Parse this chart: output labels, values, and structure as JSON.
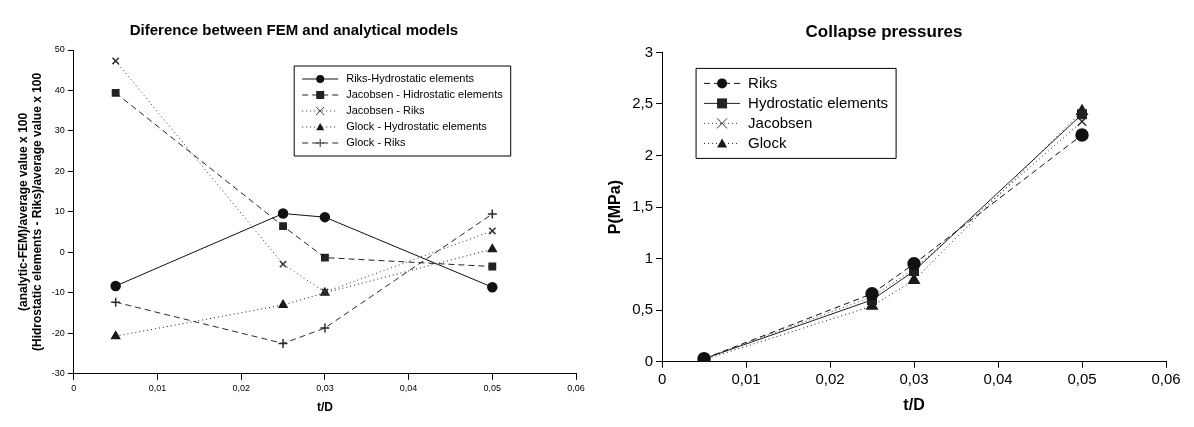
{
  "chart_data": [
    {
      "type": "line",
      "title": "Diference between FEM and analytical models",
      "xlabel": "t/D",
      "ylabel": "(analytic-FEM)/average value x 100\n(Hidrostatic elements - Riks)/average value x 100",
      "x": [
        0.005,
        0.025,
        0.03,
        0.05
      ],
      "xlim": [
        0,
        0.06
      ],
      "xticks": [
        0,
        {
          "value": 0.01,
          "label": "0,01"
        },
        {
          "value": 0.02,
          "label": "0,02"
        },
        {
          "value": 0.03,
          "label": "0,03"
        },
        {
          "value": 0.04,
          "label": "0,04"
        },
        {
          "value": 0.05,
          "label": "0,05"
        },
        {
          "value": 0.06,
          "label": "0,06"
        }
      ],
      "ylim": [
        -30,
        50
      ],
      "yticks": [
        -30,
        -20,
        -10,
        0,
        10,
        20,
        30,
        40,
        50
      ],
      "grid": false,
      "legend": "top right",
      "series": [
        {
          "name": "Riks-Hydrostatic elements",
          "color": "#111111",
          "marker": "circle",
          "line_style": "solid",
          "values": [
            -8.3,
            9.6,
            8.7,
            -8.6
          ]
        },
        {
          "name": "Jacobsen - Hidrostatic elements",
          "color": "#222222",
          "marker": "square",
          "line_style": "dashed",
          "values": [
            39.4,
            6.5,
            -1.3,
            -3.5
          ]
        },
        {
          "name": "Jacobsen - Riks",
          "color": "#333333",
          "marker": "cross",
          "line_style": "dotted",
          "values": [
            47.3,
            -2.9,
            -9.8,
            5.3
          ]
        },
        {
          "name": "Glock - Hydrostatic elements",
          "color": "#1a1a1a",
          "marker": "triangle",
          "line_style": "dotted",
          "values": [
            -20.7,
            -13,
            -10,
            0.8
          ]
        },
        {
          "name": "Glock - Riks",
          "color": "#2a2a2a",
          "marker": "plus",
          "line_style": "dashed",
          "values": [
            -12.3,
            -22.5,
            -18.7,
            9.5
          ]
        }
      ]
    },
    {
      "type": "line",
      "title": "Collapse pressures",
      "xlabel": "t/D",
      "ylabel": "P(MPa)",
      "x": [
        0.005,
        0.025,
        0.03,
        0.05
      ],
      "xlim": [
        0,
        0.06
      ],
      "xticks": [
        0,
        {
          "value": 0.01,
          "label": "0,01"
        },
        {
          "value": 0.02,
          "label": "0,02"
        },
        {
          "value": 0.03,
          "label": "0,03"
        },
        {
          "value": 0.04,
          "label": "0,04"
        },
        {
          "value": 0.05,
          "label": "0,05"
        },
        {
          "value": 0.06,
          "label": "0,06"
        }
      ],
      "ylim": [
        0,
        3
      ],
      "yticks": [
        0,
        {
          "value": 0.5,
          "label": "0,5"
        },
        1,
        {
          "value": 1.5,
          "label": "1,5"
        },
        2,
        {
          "value": 2.5,
          "label": "2,5"
        },
        3
      ],
      "grid": false,
      "legend": "top left",
      "series": [
        {
          "name": "Riks",
          "color": "#111111",
          "marker": "circle",
          "line_style": "dashed",
          "values": [
            0.03,
            0.66,
            0.95,
            2.2
          ]
        },
        {
          "name": "Hydrostatic elements",
          "color": "#222222",
          "marker": "square",
          "line_style": "solid",
          "values": [
            0.03,
            0.6,
            0.88,
            2.4
          ]
        },
        {
          "name": "Jacobsen",
          "color": "#333333",
          "marker": "cross",
          "line_style": "dotted",
          "values": [
            0.03,
            0.63,
            0.9,
            2.33
          ]
        },
        {
          "name": "Glock",
          "color": "#1a1a1a",
          "marker": "triangle",
          "line_style": "dotted",
          "values": [
            0.02,
            0.54,
            0.79,
            2.43
          ]
        }
      ]
    }
  ]
}
